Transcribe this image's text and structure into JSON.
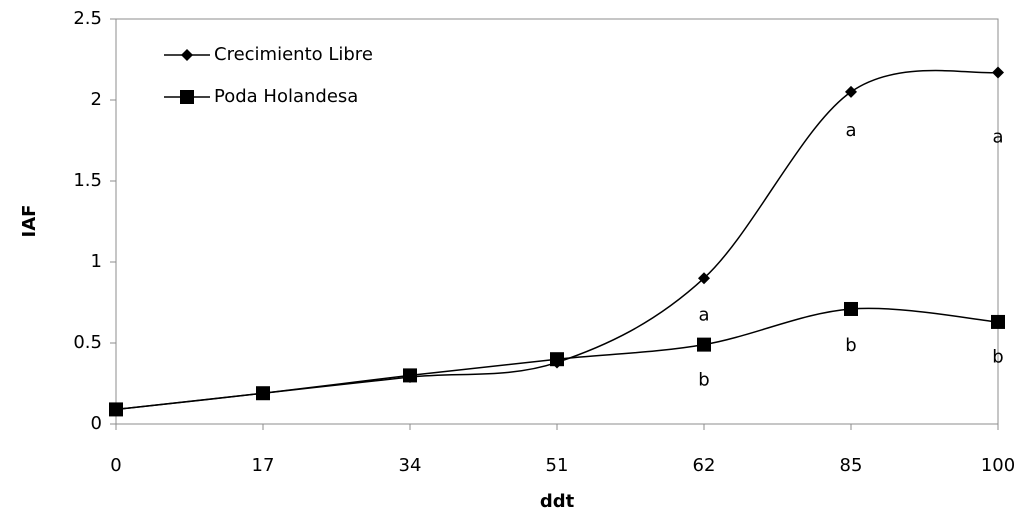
{
  "chart_data": {
    "type": "line",
    "xlabel": "ddt",
    "ylabel": "IAF",
    "categories": [
      "0",
      "17",
      "34",
      "51",
      "62",
      "85",
      "100"
    ],
    "series": [
      {
        "name": "Crecimiento Libre",
        "color": "#000000",
        "marker": "diamond",
        "values": [
          0.09,
          0.19,
          0.29,
          0.38,
          0.9,
          2.05,
          2.17
        ]
      },
      {
        "name": "Poda Holandesa",
        "color": "#000000",
        "marker": "square",
        "values": [
          0.09,
          0.19,
          0.3,
          0.4,
          0.49,
          0.71,
          0.63
        ]
      }
    ],
    "ylim": [
      0,
      2.5
    ],
    "yticks": [
      0,
      0.5,
      1,
      1.5,
      2,
      2.5
    ],
    "smooth": true,
    "legend": "upper left",
    "annotations": [
      {
        "text": "a",
        "x": "62",
        "y": 0.67
      },
      {
        "text": "b",
        "x": "62",
        "y": 0.27
      },
      {
        "text": "a",
        "x": "85",
        "y": 1.81
      },
      {
        "text": "b",
        "x": "85",
        "y": 0.48
      },
      {
        "text": "a",
        "x": "100",
        "y": 1.77
      },
      {
        "text": "b",
        "x": "100",
        "y": 0.41
      }
    ]
  }
}
